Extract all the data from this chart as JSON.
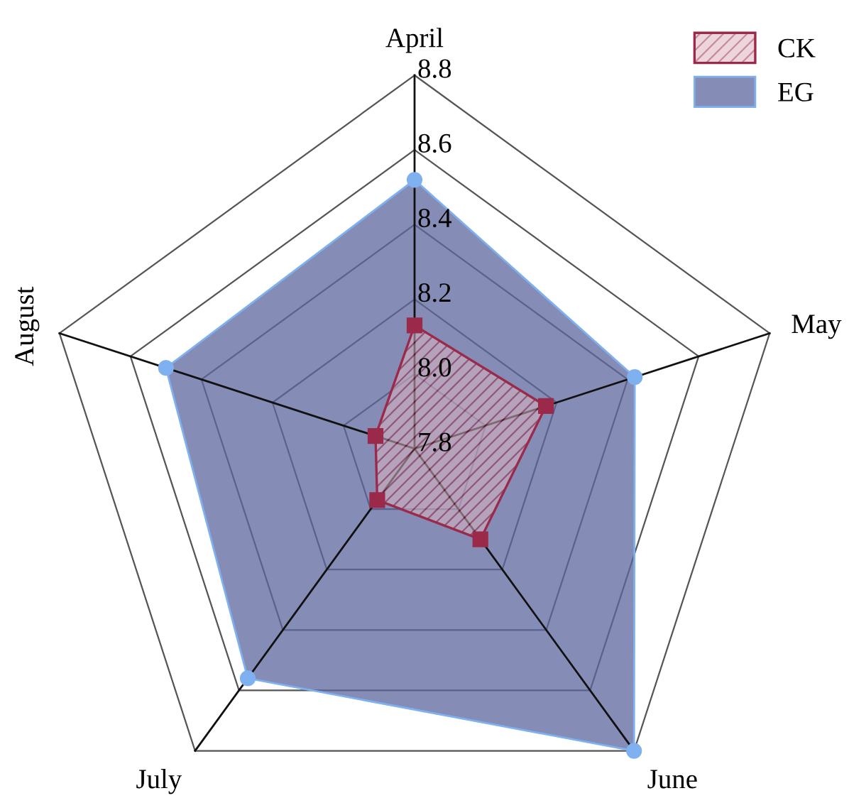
{
  "chart_data": {
    "type": "radar",
    "categories": [
      "April",
      "May",
      "June",
      "July",
      "August"
    ],
    "series": [
      {
        "name": "CK",
        "color": "#9b2a4a",
        "marker": "square",
        "values": [
          8.13,
          8.17,
          8.1,
          7.97,
          7.91
        ]
      },
      {
        "name": "EG",
        "color": "#5c669e",
        "marker": "circle",
        "values": [
          8.52,
          8.42,
          8.8,
          8.56,
          8.5
        ]
      }
    ],
    "ylim": [
      7.8,
      8.8
    ],
    "yticks": [
      7.8,
      {
        "value": 8.0,
        "label": "8.0"
      },
      8.2,
      8.4,
      8.6,
      8.8
    ],
    "grid": true,
    "legend": "top right"
  }
}
